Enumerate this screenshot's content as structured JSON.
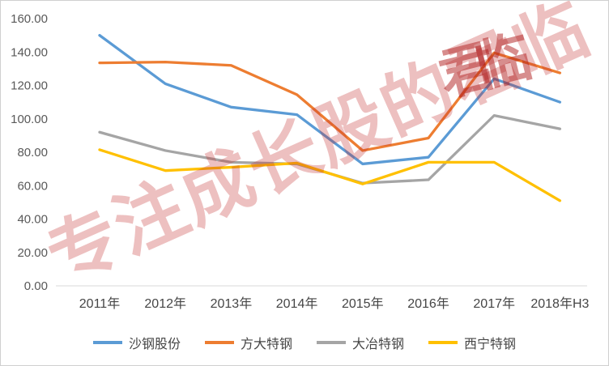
{
  "watermark": {
    "text": "专注成长股的君临",
    "seal": "君临",
    "color": "#c53030"
  },
  "chart_data": {
    "type": "line",
    "title": "",
    "xlabel": "",
    "ylabel": "",
    "categories": [
      "2011年",
      "2012年",
      "2013年",
      "2014年",
      "2015年",
      "2016年",
      "2017年",
      "2018年H3"
    ],
    "series": [
      {
        "name": "沙钢股份",
        "color": "#5B9BD5",
        "values": [
          150,
          121,
          107,
          102.5,
          73,
          77,
          124,
          110
        ]
      },
      {
        "name": "方大特钢",
        "color": "#ED7D31",
        "values": [
          133.5,
          134,
          132,
          114.5,
          81,
          88.5,
          139.5,
          127.5
        ]
      },
      {
        "name": "大冶特钢",
        "color": "#A5A5A5",
        "values": [
          92,
          81,
          74,
          73,
          61.5,
          63.5,
          102,
          94
        ]
      },
      {
        "name": "西宁特钢",
        "color": "#FFC000",
        "values": [
          81.5,
          69,
          71,
          73.5,
          61,
          74,
          74,
          51
        ]
      }
    ],
    "ylim": [
      0,
      160
    ],
    "ytick_step": 20,
    "y_tick_labels": [
      "0.00",
      "20.00",
      "40.00",
      "60.00",
      "80.00",
      "100.00",
      "120.00",
      "140.00",
      "160.00"
    ],
    "grid": false,
    "legend_position": "bottom",
    "axis_color": "#d9d9d9"
  }
}
